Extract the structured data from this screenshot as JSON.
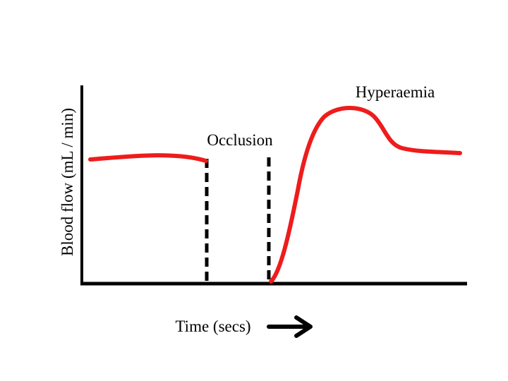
{
  "chart_data": {
    "type": "line",
    "title": "",
    "xlabel": "Time (secs)",
    "ylabel": "Blood flow (mL / min)",
    "x_ticks": "none",
    "y_ticks": "none",
    "grid": false,
    "annotations": [
      {
        "text": "Occlusion",
        "target": "dashed-occlusion-lines"
      },
      {
        "text": "Hyperaemia",
        "target": "curve-peak"
      }
    ],
    "colors": {
      "curve": "#ee1c1c",
      "axes": "#000000",
      "occlusion_lines": "#000000"
    }
  }
}
